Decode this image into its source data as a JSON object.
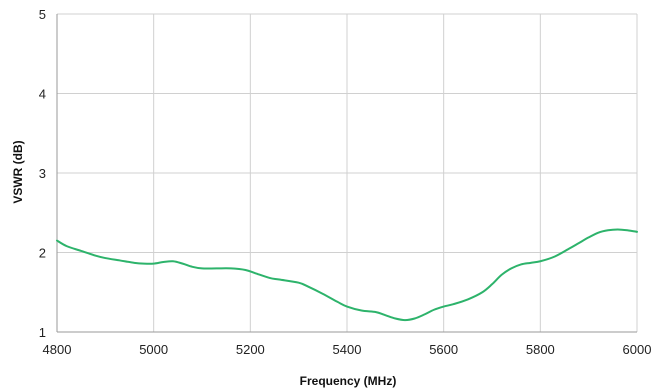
{
  "chart_data": {
    "type": "line",
    "title": "",
    "xlabel": "Frequency (MHz)",
    "ylabel": "VSWR (dB)",
    "xlim": [
      4800,
      6000
    ],
    "ylim": [
      1,
      5
    ],
    "x_ticks": [
      4800,
      5000,
      5200,
      5400,
      5600,
      5800,
      6000
    ],
    "y_ticks": [
      1,
      2,
      3,
      4,
      5
    ],
    "grid": true,
    "legend": "none",
    "series": [
      {
        "color": "#2db36b",
        "x": [
          4800,
          4820,
          4850,
          4880,
          4900,
          4930,
          4960,
          4980,
          5000,
          5020,
          5040,
          5060,
          5080,
          5100,
          5130,
          5160,
          5190,
          5210,
          5240,
          5260,
          5300,
          5320,
          5350,
          5380,
          5400,
          5430,
          5460,
          5480,
          5500,
          5520,
          5540,
          5560,
          5580,
          5600,
          5620,
          5650,
          5680,
          5700,
          5720,
          5740,
          5760,
          5780,
          5800,
          5830,
          5860,
          5880,
          5900,
          5920,
          5940,
          5960,
          5980,
          6000
        ],
        "y": [
          2.15,
          2.08,
          2.02,
          1.96,
          1.93,
          1.9,
          1.87,
          1.86,
          1.86,
          1.88,
          1.89,
          1.86,
          1.82,
          1.8,
          1.8,
          1.8,
          1.78,
          1.74,
          1.68,
          1.66,
          1.62,
          1.57,
          1.48,
          1.38,
          1.32,
          1.27,
          1.25,
          1.21,
          1.17,
          1.15,
          1.17,
          1.22,
          1.28,
          1.32,
          1.35,
          1.41,
          1.5,
          1.6,
          1.72,
          1.8,
          1.85,
          1.87,
          1.89,
          1.95,
          2.05,
          2.12,
          2.19,
          2.25,
          2.28,
          2.29,
          2.28,
          2.26
        ]
      }
    ]
  }
}
